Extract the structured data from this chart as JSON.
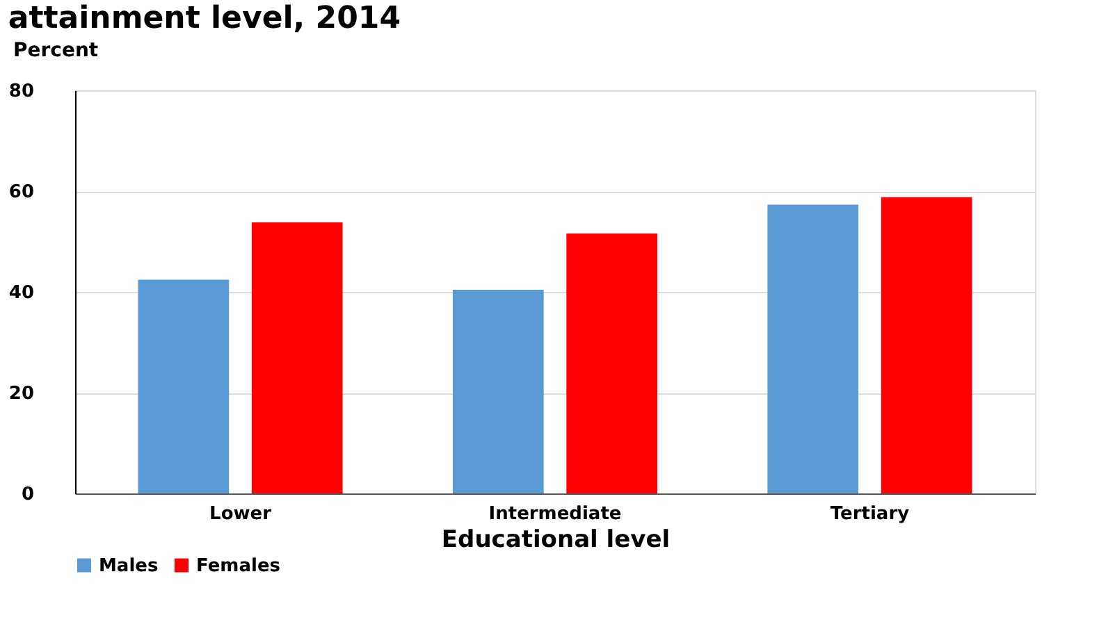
{
  "chart_data": {
    "type": "bar",
    "title": "attainment level, 2014",
    "xlabel": "Educational level",
    "ylabel": "Percent",
    "categories": [
      "Lower",
      "Intermediate",
      "Tertiary"
    ],
    "series": [
      {
        "name": "Males",
        "color": "#5b9bd5",
        "values": [
          42.4,
          40.4,
          57.3
        ]
      },
      {
        "name": "Females",
        "color": "#ff0000",
        "values": [
          53.8,
          51.6,
          58.8
        ]
      }
    ],
    "ylim": [
      0,
      80
    ],
    "yticks": [
      0,
      20,
      40,
      60,
      80
    ],
    "grid": "y",
    "legend": "bottom"
  }
}
